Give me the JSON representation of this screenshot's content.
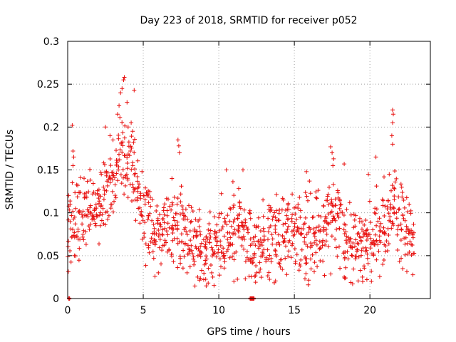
{
  "chart_data": {
    "type": "scatter",
    "title": "Day 223 of 2018, SRMTID for receiver p052",
    "xlabel": "GPS time / hours",
    "ylabel": "SRMTID / TECUs",
    "xlim": [
      0,
      24
    ],
    "ylim": [
      0,
      0.3
    ],
    "xticks": [
      0,
      5,
      10,
      15,
      20
    ],
    "xtick_labels": [
      "0",
      "5",
      "10",
      "15",
      "20"
    ],
    "yticks": [
      0,
      0.05,
      0.1,
      0.15,
      0.2,
      0.25,
      0.3
    ],
    "ytick_labels": [
      "0",
      "0.05",
      "0.1",
      "0.15",
      "0.2",
      "0.25",
      "0.3"
    ],
    "grid": true,
    "marker": "+",
    "color": "#e8100f",
    "series": [
      {
        "name": "SRMTID",
        "x_start": 0.05,
        "x_step": 0.2,
        "envelope": [
          0.08,
          0.078,
          0.09,
          0.095,
          0.1,
          0.098,
          0.102,
          0.105,
          0.11,
          0.108,
          0.112,
          0.118,
          0.125,
          0.13,
          0.135,
          0.14,
          0.15,
          0.16,
          0.17,
          0.175,
          0.165,
          0.15,
          0.14,
          0.125,
          0.115,
          0.105,
          0.095,
          0.09,
          0.085,
          0.08,
          0.082,
          0.078,
          0.075,
          0.08,
          0.082,
          0.085,
          0.08,
          0.078,
          0.075,
          0.072,
          0.07,
          0.068,
          0.065,
          0.062,
          0.06,
          0.058,
          0.055,
          0.06,
          0.062,
          0.065,
          0.068,
          0.07,
          0.075,
          0.078,
          0.08,
          0.082,
          0.085,
          0.082,
          0.078,
          0.072,
          0.065,
          0.06,
          0.058,
          0.06,
          0.062,
          0.065,
          0.068,
          0.07,
          0.072,
          0.075,
          0.078,
          0.08,
          0.082,
          0.08,
          0.078,
          0.075,
          0.072,
          0.07,
          0.068,
          0.07,
          0.072,
          0.075,
          0.078,
          0.08,
          0.082,
          0.085,
          0.088,
          0.09,
          0.088,
          0.085,
          0.08,
          0.075,
          0.072,
          0.07,
          0.068,
          0.066,
          0.064,
          0.062,
          0.06,
          0.062,
          0.065,
          0.07,
          0.075,
          0.08,
          0.085,
          0.09,
          0.1,
          0.11,
          0.105,
          0.095,
          0.09,
          0.085,
          0.08,
          0.078,
          0.076
        ],
        "spikes": [
          {
            "x": 0.3,
            "y": 0.202
          },
          {
            "x": 0.35,
            "y": 0.172
          },
          {
            "x": 0.4,
            "y": 0.165
          },
          {
            "x": 0.35,
            "y": 0.155
          },
          {
            "x": 0.3,
            "y": 0.135
          },
          {
            "x": 2.5,
            "y": 0.2
          },
          {
            "x": 2.8,
            "y": 0.19
          },
          {
            "x": 3.0,
            "y": 0.185
          },
          {
            "x": 3.3,
            "y": 0.215
          },
          {
            "x": 3.4,
            "y": 0.225
          },
          {
            "x": 3.5,
            "y": 0.24
          },
          {
            "x": 3.6,
            "y": 0.245
          },
          {
            "x": 3.7,
            "y": 0.255
          },
          {
            "x": 3.75,
            "y": 0.258
          },
          {
            "x": 4.4,
            "y": 0.243
          },
          {
            "x": 4.0,
            "y": 0.2
          },
          {
            "x": 4.2,
            "y": 0.205
          },
          {
            "x": 4.3,
            "y": 0.195
          },
          {
            "x": 7.3,
            "y": 0.185
          },
          {
            "x": 7.35,
            "y": 0.178
          },
          {
            "x": 7.4,
            "y": 0.17
          },
          {
            "x": 17.4,
            "y": 0.177
          },
          {
            "x": 17.5,
            "y": 0.17
          },
          {
            "x": 17.6,
            "y": 0.163
          },
          {
            "x": 17.55,
            "y": 0.155
          },
          {
            "x": 20.4,
            "y": 0.165
          },
          {
            "x": 21.5,
            "y": 0.22
          },
          {
            "x": 21.55,
            "y": 0.215
          },
          {
            "x": 21.5,
            "y": 0.205
          },
          {
            "x": 21.45,
            "y": 0.19
          },
          {
            "x": 21.5,
            "y": 0.18
          },
          {
            "x": 15.8,
            "y": 0.148
          },
          {
            "x": 16.0,
            "y": 0.137
          },
          {
            "x": 18.3,
            "y": 0.157
          },
          {
            "x": 10.5,
            "y": 0.15
          },
          {
            "x": 11.6,
            "y": 0.15
          },
          {
            "x": 6.9,
            "y": 0.14
          },
          {
            "x": 19.9,
            "y": 0.145
          }
        ],
        "lows": [
          {
            "x": 8.6,
            "y": 0.025
          },
          {
            "x": 9.0,
            "y": 0.022
          },
          {
            "x": 9.3,
            "y": 0.018
          },
          {
            "x": 9.6,
            "y": 0.025
          },
          {
            "x": 11.0,
            "y": 0.02
          },
          {
            "x": 12.5,
            "y": 0.03
          },
          {
            "x": 14.5,
            "y": 0.028
          },
          {
            "x": 17.0,
            "y": 0.027
          },
          {
            "x": 18.3,
            "y": 0.025
          },
          {
            "x": 19.5,
            "y": 0.025
          },
          {
            "x": 19.8,
            "y": 0.022
          },
          {
            "x": 20.1,
            "y": 0.02
          },
          {
            "x": 6.0,
            "y": 0.03
          },
          {
            "x": 7.9,
            "y": 0.03
          }
        ],
        "zero_points": [
          0.1,
          12.1,
          12.15,
          12.2,
          12.25,
          12.3
        ]
      }
    ]
  }
}
